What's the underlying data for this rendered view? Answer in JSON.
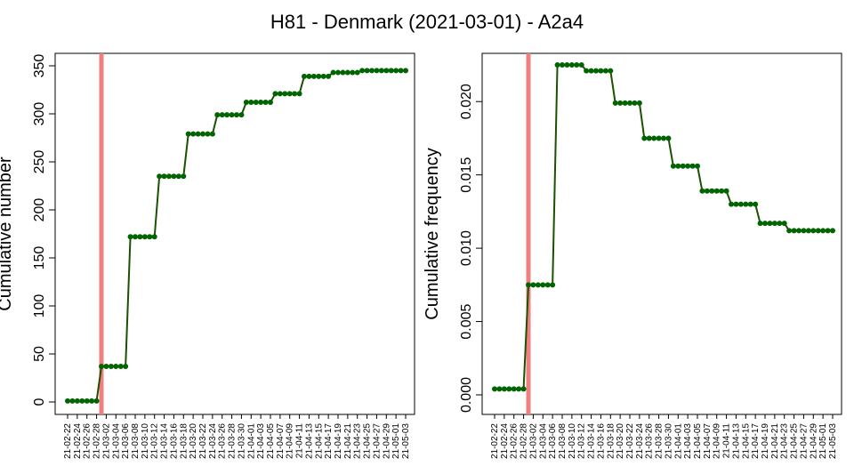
{
  "title": "H81 - Denmark (2021-03-01) - A2a4",
  "colors": {
    "line": "#1a5200",
    "point": "#006400",
    "marker": "#f08080",
    "frame": "#000000"
  },
  "chart_data": [
    {
      "type": "line",
      "ylabel": "Cumulative number",
      "ylim": [
        0,
        350
      ],
      "yticks": [
        "0",
        "50",
        "100",
        "150",
        "200",
        "250",
        "300",
        "350"
      ],
      "marker_date": "21-03-01",
      "x": [
        "21-02-22",
        "21-02-23",
        "21-02-24",
        "21-02-25",
        "21-02-26",
        "21-02-27",
        "21-02-28",
        "21-03-01",
        "21-03-02",
        "21-03-03",
        "21-03-04",
        "21-03-05",
        "21-03-06",
        "21-03-07",
        "21-03-08",
        "21-03-09",
        "21-03-10",
        "21-03-11",
        "21-03-12",
        "21-03-13",
        "21-03-14",
        "21-03-15",
        "21-03-16",
        "21-03-17",
        "21-03-18",
        "21-03-19",
        "21-03-20",
        "21-03-21",
        "21-03-22",
        "21-03-23",
        "21-03-24",
        "21-03-25",
        "21-03-26",
        "21-03-27",
        "21-03-28",
        "21-03-29",
        "21-03-30",
        "21-03-31",
        "21-04-01",
        "21-04-02",
        "21-04-03",
        "21-04-04",
        "21-04-05",
        "21-04-06",
        "21-04-07",
        "21-04-08",
        "21-04-09",
        "21-04-10",
        "21-04-11",
        "21-04-12",
        "21-04-13",
        "21-04-14",
        "21-04-15",
        "21-04-16",
        "21-04-17",
        "21-04-18",
        "21-04-19",
        "21-04-20",
        "21-04-21",
        "21-04-22",
        "21-04-23",
        "21-04-24",
        "21-04-25",
        "21-04-26",
        "21-04-27",
        "21-04-28",
        "21-04-29",
        "21-04-30",
        "21-05-01",
        "21-05-02",
        "21-05-03"
      ],
      "values": [
        1,
        1,
        1,
        1,
        1,
        1,
        1,
        37,
        37,
        37,
        37,
        37,
        37,
        172,
        172,
        172,
        172,
        172,
        172,
        235,
        235,
        235,
        235,
        235,
        235,
        279,
        279,
        279,
        279,
        279,
        279,
        299,
        299,
        299,
        299,
        299,
        299,
        312,
        312,
        312,
        312,
        312,
        312,
        321,
        321,
        321,
        321,
        321,
        321,
        339,
        339,
        339,
        339,
        339,
        339,
        343,
        343,
        343,
        343,
        343,
        343,
        345,
        345,
        345,
        345,
        345,
        345,
        345,
        345,
        345,
        345
      ]
    },
    {
      "type": "line",
      "ylabel": "Cumulative frequency",
      "ylim": [
        0,
        0.0225
      ],
      "yticks": [
        "0.000",
        "0.005",
        "0.010",
        "0.015",
        "0.020"
      ],
      "marker_date": "21-03-01",
      "x": [
        "21-02-22",
        "21-02-23",
        "21-02-24",
        "21-02-25",
        "21-02-26",
        "21-02-27",
        "21-02-28",
        "21-03-01",
        "21-03-02",
        "21-03-03",
        "21-03-04",
        "21-03-05",
        "21-03-06",
        "21-03-07",
        "21-03-08",
        "21-03-09",
        "21-03-10",
        "21-03-11",
        "21-03-12",
        "21-03-13",
        "21-03-14",
        "21-03-15",
        "21-03-16",
        "21-03-17",
        "21-03-18",
        "21-03-19",
        "21-03-20",
        "21-03-21",
        "21-03-22",
        "21-03-23",
        "21-03-24",
        "21-03-25",
        "21-03-26",
        "21-03-27",
        "21-03-28",
        "21-03-29",
        "21-03-30",
        "21-03-31",
        "21-04-01",
        "21-04-02",
        "21-04-03",
        "21-04-04",
        "21-04-05",
        "21-04-06",
        "21-04-07",
        "21-04-08",
        "21-04-09",
        "21-04-10",
        "21-04-11",
        "21-04-12",
        "21-04-13",
        "21-04-14",
        "21-04-15",
        "21-04-16",
        "21-04-17",
        "21-04-18",
        "21-04-19",
        "21-04-20",
        "21-04-21",
        "21-04-22",
        "21-04-23",
        "21-04-24",
        "21-04-25",
        "21-04-26",
        "21-04-27",
        "21-04-28",
        "21-04-29",
        "21-04-30",
        "21-05-01",
        "21-05-02",
        "21-05-03"
      ],
      "values": [
        0.0004,
        0.0004,
        0.0004,
        0.0004,
        0.0004,
        0.0004,
        0.0004,
        0.0075,
        0.0075,
        0.0075,
        0.0075,
        0.0075,
        0.0075,
        0.0225,
        0.0225,
        0.0225,
        0.0225,
        0.0225,
        0.0225,
        0.0221,
        0.0221,
        0.0221,
        0.0221,
        0.0221,
        0.0221,
        0.0199,
        0.0199,
        0.0199,
        0.0199,
        0.0199,
        0.0199,
        0.0175,
        0.0175,
        0.0175,
        0.0175,
        0.0175,
        0.0175,
        0.0156,
        0.0156,
        0.0156,
        0.0156,
        0.0156,
        0.0156,
        0.0139,
        0.0139,
        0.0139,
        0.0139,
        0.0139,
        0.0139,
        0.013,
        0.013,
        0.013,
        0.013,
        0.013,
        0.013,
        0.0117,
        0.0117,
        0.0117,
        0.0117,
        0.0117,
        0.0117,
        0.0112,
        0.0112,
        0.0112,
        0.0112,
        0.0112,
        0.0112,
        0.0112,
        0.0112,
        0.0112,
        0.0112
      ]
    }
  ]
}
